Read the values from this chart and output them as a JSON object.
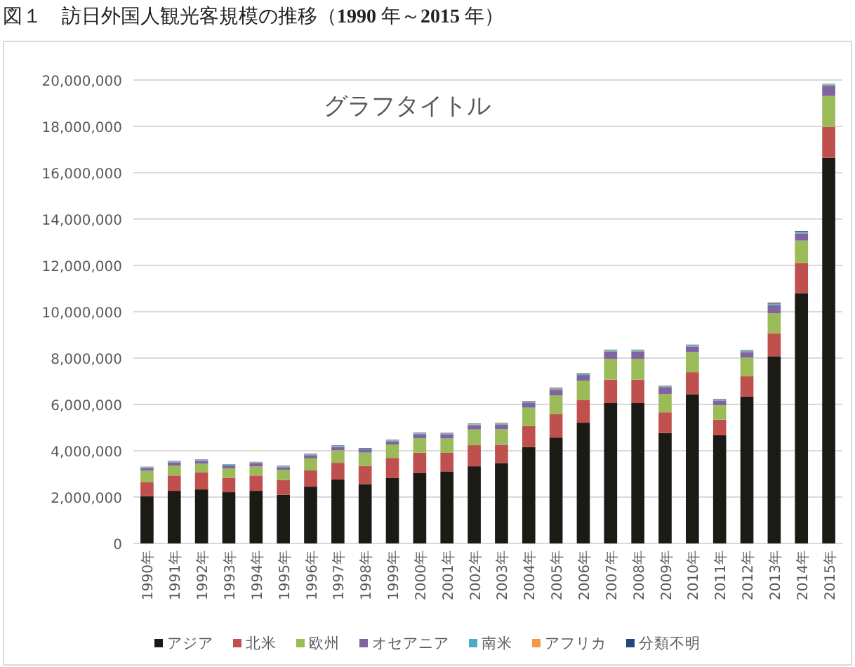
{
  "chart_data": {
    "type": "bar",
    "stacked": true,
    "title": "図１　訪日外国人観光客規模の推移（**1990** 年～**2015** 年）",
    "subtitle": "グラフタイトル",
    "categories": [
      "1990年",
      "1991年",
      "1992年",
      "1993年",
      "1994年",
      "1995年",
      "1996年",
      "1997年",
      "1998年",
      "1999年",
      "2000年",
      "2001年",
      "2002年",
      "2003年",
      "2004年",
      "2005年",
      "2006年",
      "2007年",
      "2008年",
      "2009年",
      "2010年",
      "2011年",
      "2012年",
      "2013年",
      "2014年",
      "2015年"
    ],
    "series": [
      {
        "name": "アジア",
        "color": "#1c1a14",
        "values": [
          2040000,
          2270000,
          2330000,
          2210000,
          2270000,
          2100000,
          2450000,
          2760000,
          2560000,
          2820000,
          3050000,
          3110000,
          3330000,
          3470000,
          4160000,
          4570000,
          5210000,
          6060000,
          6060000,
          4770000,
          6440000,
          4670000,
          6340000,
          8080000,
          10800000,
          16650000
        ]
      },
      {
        "name": "北米",
        "color": "#c0504d",
        "values": [
          600000,
          660000,
          740000,
          620000,
          660000,
          640000,
          700000,
          720000,
          780000,
          870000,
          870000,
          800000,
          910000,
          790000,
          910000,
          1010000,
          990000,
          1010000,
          1010000,
          890000,
          950000,
          670000,
          870000,
          990000,
          1300000,
          1330000
        ]
      },
      {
        "name": "欧州",
        "color": "#9bbb59",
        "values": [
          500000,
          430000,
          370000,
          410000,
          390000,
          430000,
          520000,
          540000,
          580000,
          580000,
          620000,
          620000,
          680000,
          670000,
          790000,
          810000,
          830000,
          890000,
          890000,
          790000,
          870000,
          630000,
          810000,
          870000,
          970000,
          1330000
        ]
      },
      {
        "name": "オセアニア",
        "color": "#8064a2",
        "values": [
          120000,
          140000,
          120000,
          120000,
          140000,
          120000,
          140000,
          140000,
          140000,
          140000,
          180000,
          180000,
          180000,
          200000,
          200000,
          240000,
          240000,
          320000,
          320000,
          280000,
          240000,
          200000,
          240000,
          340000,
          300000,
          420000
        ]
      },
      {
        "name": "南米",
        "color": "#4bacc6",
        "values": [
          30000,
          40000,
          30000,
          40000,
          40000,
          30000,
          30000,
          40000,
          30000,
          30000,
          30000,
          30000,
          30000,
          30000,
          40000,
          40000,
          40000,
          40000,
          40000,
          30000,
          40000,
          30000,
          40000,
          50000,
          50000,
          70000
        ]
      },
      {
        "name": "アフリカ",
        "color": "#f79646",
        "values": [
          10000,
          10000,
          10000,
          10000,
          10000,
          10000,
          10000,
          10000,
          10000,
          10000,
          10000,
          10000,
          20000,
          20000,
          20000,
          30000,
          20000,
          20000,
          20000,
          20000,
          20000,
          20000,
          20000,
          20000,
          20000,
          30000
        ]
      },
      {
        "name": "分類不明",
        "color": "#1f497d",
        "values": [
          10000,
          10000,
          20000,
          10000,
          10000,
          20000,
          20000,
          20000,
          20000,
          20000,
          20000,
          20000,
          20000,
          20000,
          20000,
          20000,
          20000,
          20000,
          20000,
          20000,
          20000,
          20000,
          20000,
          40000,
          40000,
          10000
        ]
      }
    ],
    "ylim": [
      0,
      20000000
    ],
    "yticks": [
      {
        "value": 0,
        "label": "0"
      },
      {
        "value": 2000000,
        "label": "2,000,000"
      },
      {
        "value": 4000000,
        "label": "4,000,000"
      },
      {
        "value": 6000000,
        "label": "6,000,000"
      },
      {
        "value": 8000000,
        "label": "8,000,000"
      },
      {
        "value": 10000000,
        "label": "10,000,000"
      },
      {
        "value": 12000000,
        "label": "12,000,000"
      },
      {
        "value": 14000000,
        "label": "14,000,000"
      },
      {
        "value": 16000000,
        "label": "16,000,000"
      },
      {
        "value": 18000000,
        "label": "18,000,000"
      },
      {
        "value": 20000000,
        "label": "20,000,000"
      }
    ],
    "grid": "y",
    "legend": "bottom"
  }
}
